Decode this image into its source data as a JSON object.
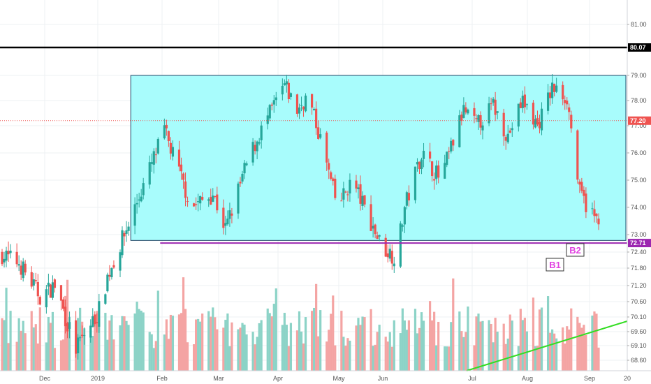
{
  "chart_data": {
    "type": "candlestick",
    "y_axis_ticks": [
      "81.00",
      "80.07",
      "79.00",
      "78.00",
      "77.00",
      "76.00",
      "75.00",
      "74.00",
      "73.00",
      "72.40",
      "71.80",
      "71.20",
      "70.60",
      "70.10",
      "69.60",
      "69.10",
      "68.60"
    ],
    "x_axis_ticks": [
      "Dec",
      "2019",
      "Feb",
      "Mar",
      "Apr",
      "May",
      "Jun",
      "Jul",
      "Aug",
      "Sep",
      "20"
    ],
    "price_labels": {
      "resistance": "80.07",
      "current": "77.20",
      "support": "72.71"
    },
    "levels": {
      "resistance": 80.07,
      "current": 77.2,
      "support": 72.71
    },
    "range_box": {
      "top": 79.0,
      "bottom": 72.8,
      "start_date": "2019-02-01",
      "end_date": "2019-09-30"
    },
    "support_segment_start_date": "2019-02-08",
    "annotations": [
      "B1",
      "B2"
    ],
    "start_date": "2018-11-26",
    "end_date": "2019-09-05",
    "anchor_closes": [
      [
        0,
        72.3
      ],
      [
        8,
        72.0
      ],
      [
        18,
        70.8
      ],
      [
        25,
        71.2
      ],
      [
        35,
        69.0
      ],
      [
        46,
        70.3
      ],
      [
        50,
        71.5
      ],
      [
        58,
        73.0
      ],
      [
        68,
        75.0
      ],
      [
        77,
        76.8
      ],
      [
        83,
        75.5
      ],
      [
        90,
        74.0
      ],
      [
        100,
        74.5
      ],
      [
        106,
        73.2
      ],
      [
        117,
        75.8
      ],
      [
        124,
        77.0
      ],
      [
        134,
        78.6
      ],
      [
        140,
        77.6
      ],
      [
        145,
        78.2
      ],
      [
        151,
        76.5
      ],
      [
        159,
        74.0
      ],
      [
        166,
        75.0
      ],
      [
        180,
        72.6
      ],
      [
        187,
        72.2
      ],
      [
        191,
        74.0
      ],
      [
        199,
        76.0
      ],
      [
        208,
        75.0
      ],
      [
        219,
        77.6
      ],
      [
        225,
        77.0
      ],
      [
        233,
        77.8
      ],
      [
        240,
        76.6
      ],
      [
        247,
        78.0
      ],
      [
        254,
        77.0
      ],
      [
        261,
        78.5
      ],
      [
        268,
        78.1
      ],
      [
        274,
        74.5
      ],
      [
        282,
        73.5
      ],
      [
        289,
        75.0
      ],
      [
        295,
        73.1
      ],
      [
        302,
        74.6
      ],
      [
        310,
        73.0
      ],
      [
        316,
        74.8
      ],
      [
        321,
        77.2
      ],
      [
        325,
        77.3
      ]
    ],
    "volume_max": 100
  },
  "colors": {
    "bull": "#26a69a",
    "bear": "#ef5350",
    "bull_vol": "#8cd3c7",
    "bear_vol": "#f4a4a3",
    "box_fill": "#a8fcfc",
    "box_stroke": "#1e4a6a",
    "support": "#9c27b0",
    "resistance": "#000000",
    "trend": "#33dd22",
    "current": "#ef5350",
    "grid": "#eef0f3",
    "badge": "#e040e0"
  }
}
